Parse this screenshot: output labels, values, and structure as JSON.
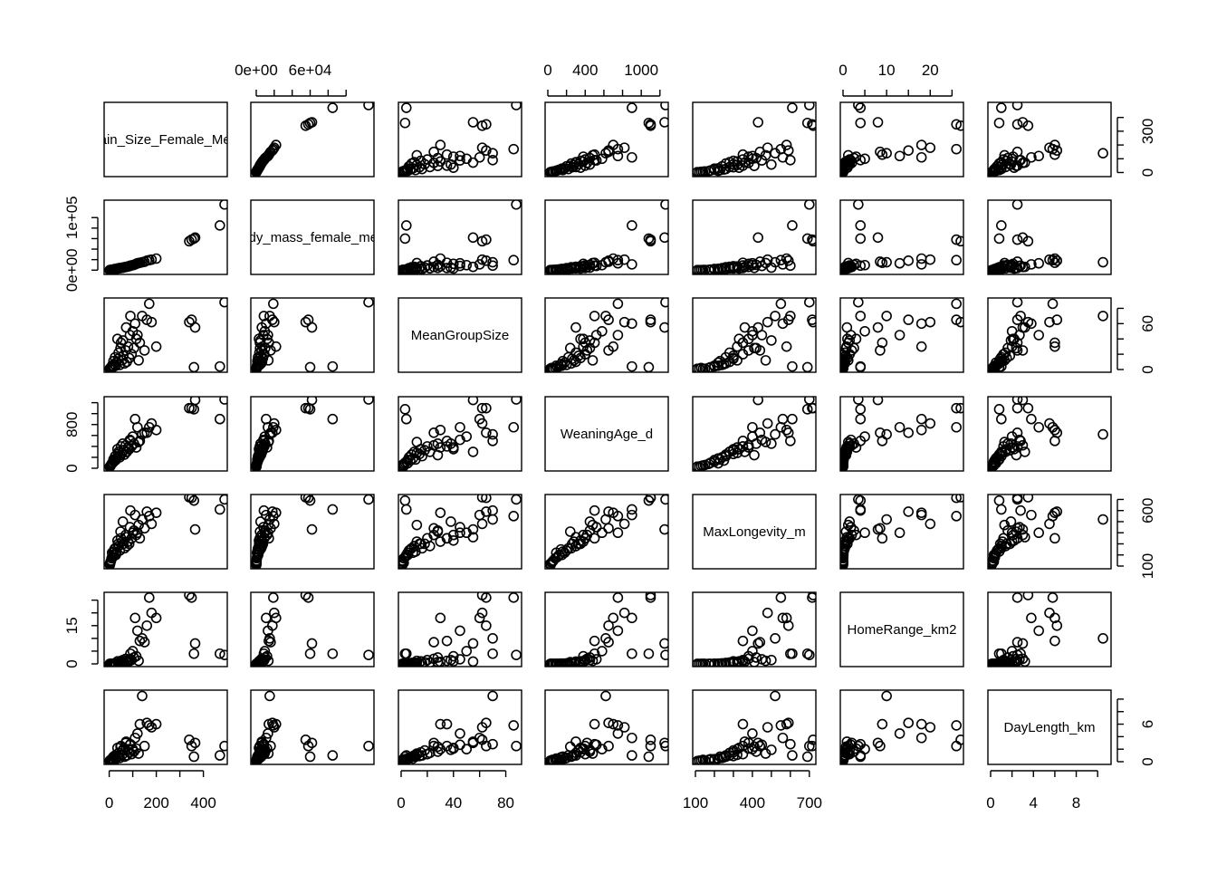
{
  "chart_data": {
    "type": "scatter",
    "kind": "scatterplot-matrix",
    "title": "",
    "variables": [
      {
        "name": "Brain_Size_Female_Mean",
        "range": [
          -10,
          490
        ],
        "ticks": [
          0,
          100,
          200,
          300,
          400
        ],
        "col_labels": [
          "0",
          "",
          "200",
          "",
          "400"
        ],
        "row_labels": [
          "0",
          "",
          "",
          "300",
          ""
        ]
      },
      {
        "name": "Body_mass_female_mean",
        "range": [
          -3000,
          128000
        ],
        "ticks": [
          0,
          20000,
          40000,
          60000,
          80000,
          100000
        ],
        "col_labels": [
          "0e+00",
          "",
          "",
          "6e+04",
          "",
          ""
        ],
        "row_labels": [
          "0e+00",
          "",
          "",
          "",
          "",
          "1e+05"
        ]
      },
      {
        "name": "MeanGroupSize",
        "range": [
          0,
          90
        ],
        "ticks": [
          0,
          20,
          40,
          60,
          80
        ],
        "col_labels": [
          "0",
          "",
          "40",
          "",
          "80"
        ],
        "row_labels": [
          "0",
          "",
          "",
          "60",
          ""
        ]
      },
      {
        "name": "WeaningAge_d",
        "range": [
          0,
          1260
        ],
        "ticks": [
          0,
          200,
          400,
          600,
          800,
          1000,
          1200
        ],
        "col_labels": [
          "0",
          "",
          "400",
          "",
          "",
          "1000",
          ""
        ],
        "row_labels": [
          "0",
          "",
          "",
          "",
          "800",
          "",
          ""
        ]
      },
      {
        "name": "MaxLongevity_m",
        "range": [
          100,
          720
        ],
        "ticks": [
          100,
          200,
          300,
          400,
          500,
          600,
          700
        ],
        "col_labels": [
          "100",
          "",
          "",
          "400",
          "",
          "",
          "700"
        ],
        "row_labels": [
          "100",
          "",
          "",
          "",
          "",
          "600",
          ""
        ]
      },
      {
        "name": "HomeRange_km2",
        "range": [
          0,
          27
        ],
        "ticks": [
          0,
          5,
          10,
          15,
          20,
          25
        ],
        "col_labels": [
          "0",
          "",
          "10",
          "",
          "20",
          ""
        ],
        "row_labels": [
          "0",
          "",
          "",
          "15",
          "",
          ""
        ]
      },
      {
        "name": "DayLength_km",
        "range": [
          0,
          11
        ],
        "ticks": [
          0,
          2,
          4,
          6,
          8,
          10
        ],
        "col_labels": [
          "0",
          "",
          "4",
          "",
          "8",
          ""
        ],
        "row_labels": [
          "0",
          "",
          "",
          "6",
          "",
          ""
        ]
      }
    ],
    "rows": [
      [
        470,
        85000,
        4,
        900,
        610,
        4,
        1.0
      ],
      [
        490,
        125000,
        88,
        1260,
        700,
        3.5,
        2.5
      ],
      [
        340,
        55000,
        62,
        1100,
        720,
        27,
        3.5
      ],
      [
        350,
        58000,
        65,
        1100,
        715,
        26,
        2.5
      ],
      [
        360,
        60000,
        3,
        1080,
        690,
        4,
        0.8
      ],
      [
        365,
        62000,
        55,
        1250,
        430,
        8,
        3
      ],
      [
        200,
        22000,
        30,
        700,
        580,
        18,
        6
      ],
      [
        180,
        20000,
        62,
        820,
        480,
        20,
        5.5
      ],
      [
        160,
        18000,
        65,
        650,
        590,
        15,
        6.2
      ],
      [
        140,
        15000,
        70,
        620,
        520,
        10,
        10.5
      ],
      [
        120,
        13000,
        45,
        750,
        400,
        13,
        4.5
      ],
      [
        170,
        19000,
        86,
        750,
        550,
        26,
        5.8
      ],
      [
        150,
        16000,
        25,
        650,
        440,
        8.5,
        2.5
      ],
      [
        110,
        11000,
        60,
        900,
        560,
        18,
        3.8
      ],
      [
        130,
        14000,
        35,
        500,
        350,
        9,
        6
      ],
      [
        100,
        9500,
        50,
        580,
        400,
        5,
        2
      ],
      [
        90,
        8500,
        70,
        500,
        600,
        4,
        2.8
      ],
      [
        95,
        9000,
        20,
        400,
        350,
        1.5,
        1.2
      ],
      [
        85,
        7500,
        15,
        350,
        300,
        1,
        1.5
      ],
      [
        80,
        7000,
        30,
        380,
        320,
        0.8,
        2
      ],
      [
        75,
        6500,
        10,
        300,
        280,
        0.5,
        1
      ],
      [
        70,
        6000,
        25,
        420,
        380,
        2,
        3
      ],
      [
        65,
        5500,
        8,
        250,
        260,
        0.4,
        0.8
      ],
      [
        60,
        5000,
        18,
        330,
        300,
        0.6,
        1.8
      ],
      [
        55,
        4500,
        12,
        280,
        320,
        0.3,
        1.1
      ],
      [
        50,
        4000,
        35,
        400,
        350,
        1.2,
        2.5
      ],
      [
        45,
        3800,
        6,
        200,
        240,
        0.2,
        0.6
      ],
      [
        40,
        3500,
        22,
        300,
        280,
        0.5,
        1.4
      ],
      [
        38,
        3200,
        14,
        260,
        300,
        0.3,
        0.9
      ],
      [
        35,
        3000,
        40,
        350,
        330,
        1,
        2.2
      ],
      [
        30,
        2500,
        9,
        180,
        220,
        0.1,
        0.5
      ],
      [
        28,
        2200,
        5,
        150,
        200,
        0.08,
        0.4
      ],
      [
        25,
        2000,
        16,
        220,
        260,
        0.2,
        1
      ],
      [
        22,
        1800,
        7,
        140,
        250,
        0.1,
        0.7
      ],
      [
        20,
        1500,
        4,
        120,
        200,
        0.05,
        0.3
      ],
      [
        18,
        1200,
        11,
        160,
        230,
        0.1,
        0.8
      ],
      [
        15,
        1000,
        3,
        100,
        180,
        0.04,
        0.4
      ],
      [
        12,
        800,
        5,
        90,
        220,
        0.03,
        0.5
      ],
      [
        10,
        600,
        2,
        80,
        170,
        0.02,
        0.3
      ],
      [
        8,
        400,
        1,
        60,
        150,
        0.01,
        0.2
      ],
      [
        6,
        300,
        1,
        50,
        140,
        0.02,
        0.3
      ],
      [
        5,
        250,
        2,
        40,
        130,
        0.01,
        0.2
      ],
      [
        3,
        100,
        1,
        30,
        110,
        0.005,
        0.1
      ],
      [
        2,
        60,
        1,
        25,
        120,
        0.003,
        0.15
      ],
      [
        105,
        10000,
        28,
        450,
        420,
        2.5,
        1.6
      ],
      [
        115,
        12000,
        40,
        380,
        380,
        3,
        2.1
      ],
      [
        88,
        8000,
        45,
        520,
        450,
        1.8,
        2.7
      ],
      [
        72,
        6200,
        55,
        300,
        360,
        0.9,
        3.2
      ],
      [
        58,
        4800,
        38,
        450,
        500,
        1.5,
        1.9
      ],
      [
        48,
        4200,
        28,
        240,
        410,
        0.7,
        2.4
      ],
      [
        125,
        13500,
        12,
        480,
        470,
        1.2,
        1.3
      ]
    ],
    "grid": false,
    "legend": "none"
  }
}
